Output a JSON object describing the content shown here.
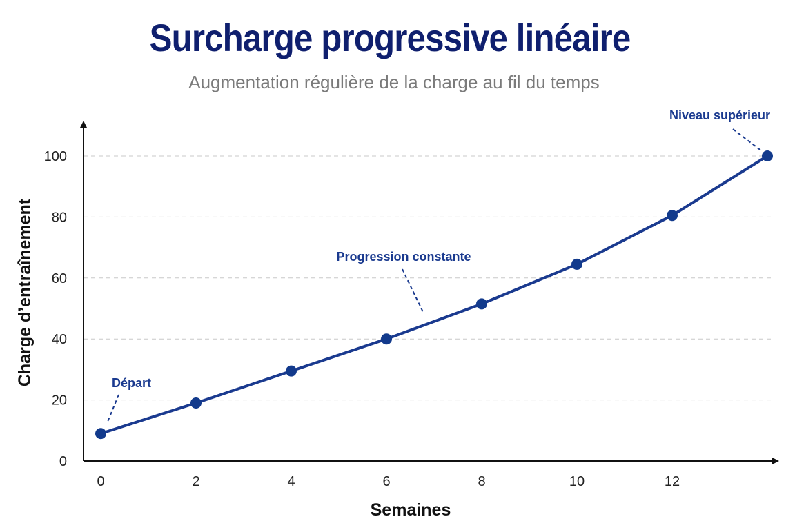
{
  "header": {
    "title": "Surcharge progressive linéaire",
    "subtitle": "Augmentation régulière de la charge au fil du temps"
  },
  "chart_data": {
    "type": "line",
    "title": "Surcharge progressive linéaire",
    "subtitle": "Augmentation régulière de la charge au fil du temps",
    "xlabel": "Semaines",
    "ylabel": "Charge d’entraînement",
    "xlim": [
      0,
      14
    ],
    "ylim": [
      0,
      100
    ],
    "x_ticks": [
      0,
      2,
      4,
      6,
      8,
      10,
      12
    ],
    "y_ticks": [
      0,
      20,
      40,
      60,
      80,
      100
    ],
    "grid": "horizontal dashed",
    "colors": {
      "line": "#1a3a8f",
      "points": "#123a8c",
      "grid": "#c8c8c8"
    },
    "series": [
      {
        "x": [
          0,
          2,
          4,
          6,
          8,
          10,
          12,
          14
        ],
        "y": [
          9,
          19,
          29.5,
          40,
          51.5,
          64.5,
          80.5,
          100
        ]
      }
    ],
    "annotations": [
      {
        "text": "Départ",
        "x": 0,
        "y": 9
      },
      {
        "text": "Progression constante",
        "x": 6.8,
        "y": 49
      },
      {
        "text": "Niveau supérieur",
        "x": 14,
        "y": 100
      }
    ]
  }
}
